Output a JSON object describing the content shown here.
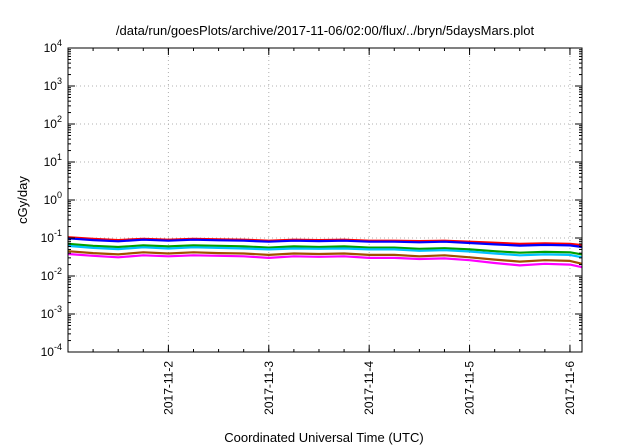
{
  "chart_data": {
    "type": "line",
    "title": "/data/run/goesPlots/archive/2017-11-06/02:00/flux/../bryn/5daysMars.plot",
    "xlabel": "Coordinated Universal Time (UTC)",
    "ylabel": "cGy/day",
    "yscale": "log",
    "ylim": [
      0.0001,
      10000
    ],
    "xlim": [
      1.0,
      6.12
    ],
    "y_ticks": [
      {
        "value": 0.0001,
        "base": "10",
        "exp": "-4"
      },
      {
        "value": 0.001,
        "base": "10",
        "exp": "-3"
      },
      {
        "value": 0.01,
        "base": "10",
        "exp": "-2"
      },
      {
        "value": 0.1,
        "base": "10",
        "exp": "-1"
      },
      {
        "value": 1,
        "base": "10",
        "exp": "0"
      },
      {
        "value": 10,
        "base": "10",
        "exp": "1"
      },
      {
        "value": 100,
        "base": "10",
        "exp": "2"
      },
      {
        "value": 1000,
        "base": "10",
        "exp": "3"
      },
      {
        "value": 10000,
        "base": "10",
        "exp": "4"
      }
    ],
    "x_ticks": [
      {
        "value": 2,
        "label": "2017-11-2"
      },
      {
        "value": 3,
        "label": "2017-11-3"
      },
      {
        "value": 4,
        "label": "2017-11-4"
      },
      {
        "value": 5,
        "label": "2017-11-5"
      },
      {
        "value": 6,
        "label": "2017-11-6"
      }
    ],
    "grid": true,
    "legend": "none",
    "x": [
      1.0,
      1.25,
      1.5,
      1.75,
      2.0,
      2.25,
      2.5,
      2.75,
      3.0,
      3.25,
      3.5,
      3.75,
      4.0,
      4.25,
      4.5,
      4.75,
      5.0,
      5.25,
      5.5,
      5.75,
      6.0,
      6.12
    ],
    "series": [
      {
        "color": "#ff0000",
        "values": [
          0.105,
          0.095,
          0.088,
          0.095,
          0.09,
          0.095,
          0.092,
          0.09,
          0.085,
          0.09,
          0.088,
          0.09,
          0.085,
          0.085,
          0.083,
          0.085,
          0.08,
          0.075,
          0.07,
          0.072,
          0.07,
          0.065
        ]
      },
      {
        "color": "#0000ff",
        "values": [
          0.098,
          0.088,
          0.082,
          0.09,
          0.085,
          0.09,
          0.087,
          0.085,
          0.08,
          0.085,
          0.083,
          0.085,
          0.08,
          0.08,
          0.077,
          0.08,
          0.074,
          0.068,
          0.063,
          0.066,
          0.064,
          0.058
        ]
      },
      {
        "color": "#00a000",
        "values": [
          0.07,
          0.062,
          0.058,
          0.064,
          0.06,
          0.064,
          0.062,
          0.06,
          0.056,
          0.06,
          0.058,
          0.06,
          0.056,
          0.056,
          0.052,
          0.054,
          0.05,
          0.045,
          0.041,
          0.043,
          0.042,
          0.037
        ]
      },
      {
        "color": "#00c0ff",
        "values": [
          0.062,
          0.055,
          0.051,
          0.057,
          0.053,
          0.057,
          0.055,
          0.053,
          0.05,
          0.053,
          0.052,
          0.053,
          0.05,
          0.05,
          0.046,
          0.048,
          0.044,
          0.039,
          0.035,
          0.037,
          0.036,
          0.031
        ]
      },
      {
        "color": "#a05000",
        "values": [
          0.045,
          0.04,
          0.037,
          0.042,
          0.039,
          0.042,
          0.04,
          0.039,
          0.036,
          0.039,
          0.038,
          0.039,
          0.036,
          0.036,
          0.033,
          0.035,
          0.031,
          0.027,
          0.024,
          0.026,
          0.025,
          0.021
        ]
      },
      {
        "color": "#ff00ff",
        "values": [
          0.038,
          0.034,
          0.031,
          0.035,
          0.033,
          0.035,
          0.034,
          0.033,
          0.03,
          0.033,
          0.032,
          0.033,
          0.03,
          0.03,
          0.028,
          0.029,
          0.026,
          0.022,
          0.019,
          0.021,
          0.02,
          0.017
        ]
      }
    ]
  }
}
